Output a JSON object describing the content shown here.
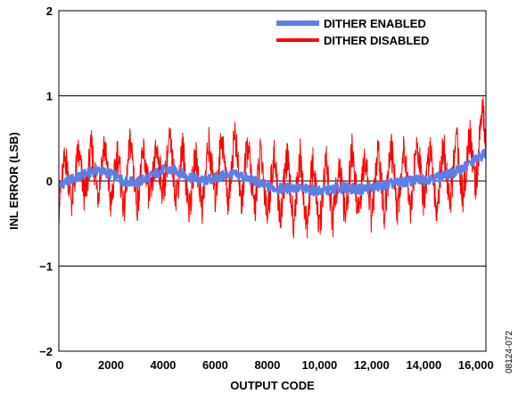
{
  "chart_data": {
    "type": "line",
    "xlabel": "OUTPUT CODE",
    "ylabel": "INL ERROR (LSB)",
    "xlim": [
      0,
      16383
    ],
    "ylim": [
      -2,
      2
    ],
    "x_ticks": [
      0,
      2000,
      4000,
      6000,
      8000,
      10000,
      12000,
      14000,
      16000
    ],
    "x_tick_labels": [
      "0",
      "2000",
      "4000",
      "6000",
      "8000",
      "10,000",
      "12,000",
      "14,000",
      "16,000"
    ],
    "y_ticks": [
      -2,
      -1,
      0,
      1,
      2
    ],
    "y_tick_labels": [
      "−2",
      "−1",
      "0",
      "1",
      "2"
    ],
    "grid": "horizontal",
    "legend_position": "top-right",
    "figure_id": "08124-072",
    "series": [
      {
        "name": "DITHER ENABLED",
        "color": "#5b7fe6",
        "x": [
          0,
          500,
          1000,
          1500,
          2000,
          2500,
          3000,
          3500,
          4000,
          4500,
          5000,
          5500,
          6000,
          6500,
          7000,
          7500,
          8000,
          8500,
          9000,
          9500,
          10000,
          10500,
          11000,
          11500,
          12000,
          12500,
          13000,
          13500,
          14000,
          14500,
          15000,
          15500,
          16000,
          16383
        ],
        "y": [
          -0.05,
          0.02,
          0.08,
          0.13,
          0.08,
          0.0,
          -0.02,
          0.05,
          0.13,
          0.12,
          0.05,
          0.0,
          0.03,
          0.08,
          0.06,
          0.0,
          -0.07,
          -0.09,
          -0.08,
          -0.1,
          -0.12,
          -0.1,
          -0.08,
          -0.1,
          -0.08,
          -0.05,
          -0.02,
          0.0,
          0.02,
          0.04,
          0.08,
          0.15,
          0.25,
          0.33
        ]
      },
      {
        "name": "DITHER DISABLED",
        "color": "#ff0000",
        "x": [
          0,
          250,
          500,
          750,
          1000,
          1250,
          1500,
          1750,
          2000,
          2250,
          2500,
          2750,
          3000,
          3250,
          3500,
          3750,
          4000,
          4250,
          4500,
          4750,
          5000,
          5250,
          5500,
          5750,
          6000,
          6250,
          6500,
          6750,
          7000,
          7250,
          7500,
          7750,
          8000,
          8250,
          8500,
          8750,
          9000,
          9250,
          9500,
          9750,
          10000,
          10250,
          10500,
          10750,
          11000,
          11250,
          11500,
          11750,
          12000,
          12250,
          12500,
          12750,
          13000,
          13250,
          13500,
          13750,
          14000,
          14250,
          14500,
          14750,
          15000,
          15250,
          15500,
          15750,
          16000,
          16250,
          16383
        ],
        "y": [
          -0.3,
          0.3,
          -0.25,
          0.35,
          -0.2,
          0.4,
          -0.15,
          0.45,
          -0.3,
          0.35,
          -0.35,
          0.5,
          -0.3,
          0.35,
          -0.25,
          0.4,
          -0.15,
          0.5,
          -0.2,
          0.4,
          -0.35,
          0.3,
          -0.3,
          0.45,
          -0.2,
          0.55,
          -0.25,
          0.6,
          -0.3,
          0.45,
          -0.35,
          0.35,
          -0.4,
          0.3,
          -0.45,
          0.3,
          -0.5,
          0.3,
          -0.55,
          0.25,
          -0.6,
          0.3,
          -0.5,
          0.2,
          -0.45,
          0.35,
          -0.4,
          0.3,
          -0.45,
          0.35,
          -0.4,
          0.4,
          -0.35,
          0.45,
          -0.35,
          0.5,
          -0.3,
          0.45,
          -0.35,
          0.45,
          -0.3,
          0.5,
          -0.2,
          0.55,
          -0.05,
          0.85,
          0.5
        ]
      }
    ]
  }
}
